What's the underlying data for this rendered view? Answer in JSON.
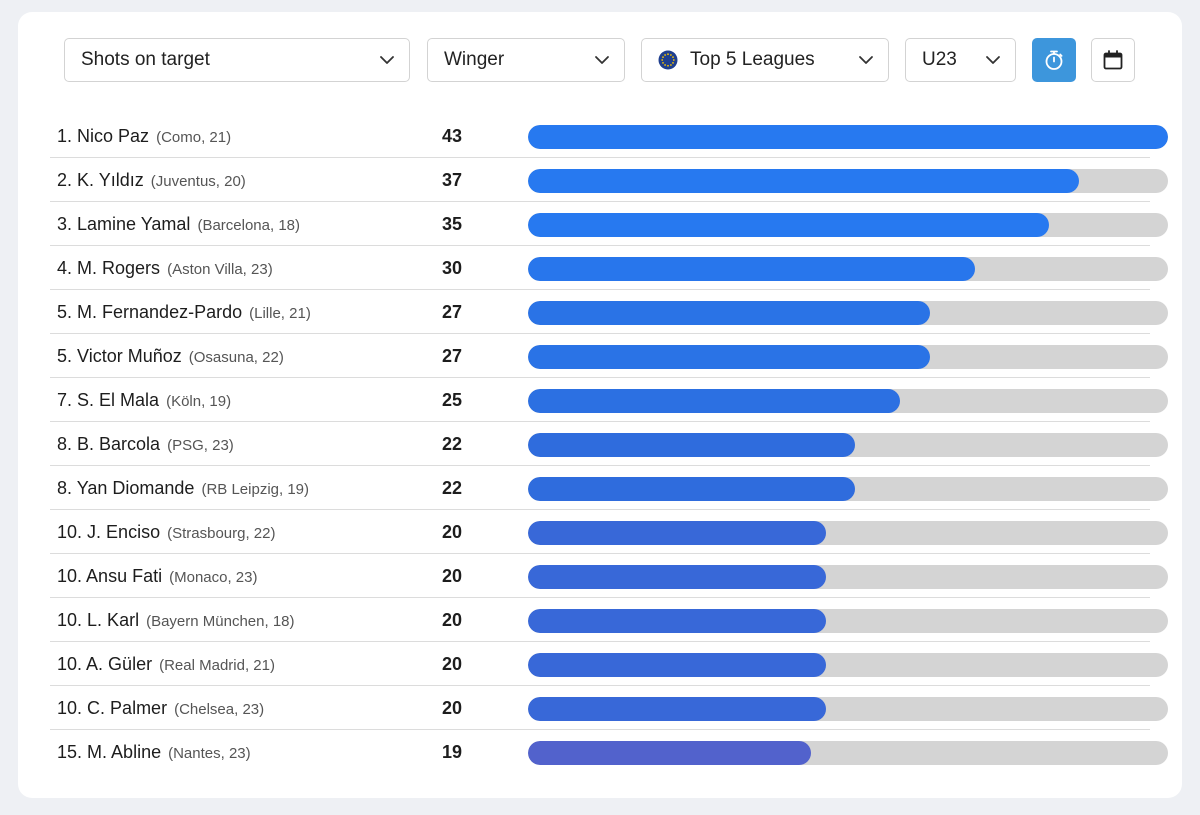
{
  "filters": {
    "metric": "Shots on target",
    "position": "Winger",
    "competition": "Top 5 Leagues",
    "age": "U23"
  },
  "icons": {
    "dropdown": "chevron-down-icon",
    "competition": "globe-icon",
    "per90_toggle": "stopwatch-icon",
    "season": "calendar-icon"
  },
  "colors": {
    "accent": "#3d96dc",
    "bar_track": "#d4d4d4"
  },
  "chart_data": {
    "type": "bar",
    "orientation": "horizontal",
    "xlim": [
      0,
      43
    ],
    "rows": [
      {
        "rank": "1.",
        "name": "Nico Paz",
        "meta": "(Como, 21)",
        "value": 43,
        "color": "#2779f0"
      },
      {
        "rank": "2.",
        "name": "K. Yıldız",
        "meta": "(Juventus, 20)",
        "value": 37,
        "color": "#2779f0"
      },
      {
        "rank": "3.",
        "name": "Lamine Yamal",
        "meta": "(Barcelona, 18)",
        "value": 35,
        "color": "#2779f0"
      },
      {
        "rank": "4.",
        "name": "M. Rogers",
        "meta": "(Aston Villa, 23)",
        "value": 30,
        "color": "#2876ec"
      },
      {
        "rank": "5.",
        "name": "M. Fernandez-Pardo",
        "meta": "(Lille, 21)",
        "value": 27,
        "color": "#2a73e6"
      },
      {
        "rank": "5.",
        "name": "Victor Muñoz",
        "meta": "(Osasuna, 22)",
        "value": 27,
        "color": "#2a73e6"
      },
      {
        "rank": "7.",
        "name": "S. El Mala",
        "meta": "(Köln, 19)",
        "value": 25,
        "color": "#2c70e2"
      },
      {
        "rank": "8.",
        "name": "B. Barcola",
        "meta": "(PSG, 23)",
        "value": 22,
        "color": "#2f6cdd"
      },
      {
        "rank": "8.",
        "name": "Yan Diomande",
        "meta": "(RB Leipzig, 19)",
        "value": 22,
        "color": "#2f6cdd"
      },
      {
        "rank": "10.",
        "name": "J. Enciso",
        "meta": "(Strasbourg, 22)",
        "value": 20,
        "color": "#3868d8"
      },
      {
        "rank": "10.",
        "name": "Ansu Fati",
        "meta": "(Monaco, 23)",
        "value": 20,
        "color": "#3868d8"
      },
      {
        "rank": "10.",
        "name": "L. Karl",
        "meta": "(Bayern München, 18)",
        "value": 20,
        "color": "#3868d8"
      },
      {
        "rank": "10.",
        "name": "A. Güler",
        "meta": "(Real Madrid, 21)",
        "value": 20,
        "color": "#3868d8"
      },
      {
        "rank": "10.",
        "name": "C. Palmer",
        "meta": "(Chelsea, 23)",
        "value": 20,
        "color": "#3868d8"
      },
      {
        "rank": "15.",
        "name": "M. Abline",
        "meta": "(Nantes, 23)",
        "value": 19,
        "color": "#5262cc"
      }
    ]
  }
}
